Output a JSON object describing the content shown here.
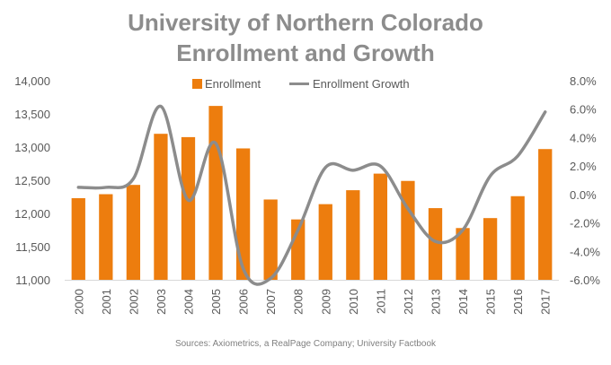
{
  "chart_data": {
    "type": "bar",
    "title_line1": "University of Northern Colorado",
    "title_line2": "Enrollment and Growth",
    "source": "Sources: Axiometrics, a RealPage Company; University Factbook",
    "categories": [
      "2000",
      "2001",
      "2002",
      "2003",
      "2004",
      "2005",
      "2006",
      "2007",
      "2008",
      "2009",
      "2010",
      "2011",
      "2012",
      "2013",
      "2014",
      "2015",
      "2016",
      "2017"
    ],
    "series": [
      {
        "name": "Enrollment",
        "type": "bar",
        "axis": "left",
        "color": "#ed7d0e",
        "values": [
          12230,
          12290,
          12430,
          13200,
          13150,
          13620,
          12980,
          12210,
          11910,
          12140,
          12350,
          12600,
          12490,
          12080,
          11780,
          11930,
          12260,
          12970
        ]
      },
      {
        "name": "Enrollment Growth",
        "type": "line",
        "axis": "right",
        "color": "#8c8c8c",
        "values": [
          0.5,
          0.5,
          1.1,
          6.2,
          -0.4,
          3.6,
          -5.2,
          -5.9,
          -2.5,
          1.9,
          1.7,
          2.0,
          -1.0,
          -3.3,
          -2.5,
          1.3,
          2.7,
          5.8
        ]
      }
    ],
    "y_left": {
      "min": 11000,
      "max": 14000,
      "step": 500,
      "ticks": [
        "11,000",
        "11,500",
        "12,000",
        "12,500",
        "13,000",
        "13,500",
        "14,000"
      ]
    },
    "y_right": {
      "min": -6,
      "max": 8,
      "step": 2,
      "ticks": [
        "-6.0%",
        "-4.0%",
        "-2.0%",
        "0.0%",
        "2.0%",
        "4.0%",
        "6.0%",
        "8.0%"
      ]
    },
    "legend_position": "top",
    "grid": false
  }
}
